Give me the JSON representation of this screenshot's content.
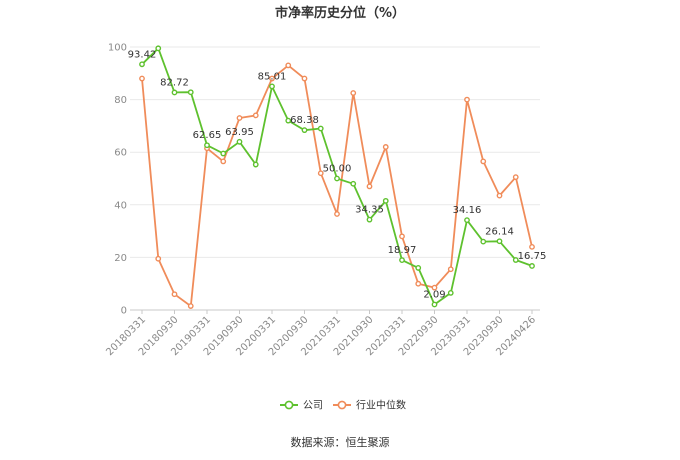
{
  "chart_data": {
    "type": "line",
    "title": "市净率历史分位（%）",
    "source": "数据来源：恒生聚源",
    "ylim": [
      0,
      100
    ],
    "yticks": [
      0,
      20,
      40,
      60,
      80,
      100
    ],
    "grid": true,
    "legend_position": "bottom",
    "x_tick_labels": [
      "20180331",
      "20180930",
      "20190331",
      "20190930",
      "20200331",
      "20200930",
      "20210331",
      "20210930",
      "20220331",
      "20220930",
      "20230331",
      "20230930",
      "20240426"
    ],
    "series": [
      {
        "name": "公司",
        "color": "#5ec12e",
        "values": [
          93.42,
          99.5,
          82.72,
          82.8,
          62.65,
          59.5,
          63.95,
          55.3,
          85.01,
          72.0,
          68.38,
          69.0,
          50.0,
          48.0,
          34.35,
          41.5,
          18.97,
          16.0,
          2.09,
          6.5,
          34.16,
          26.0,
          26.14,
          19.0,
          16.75
        ],
        "labels": {
          "0": "93.42",
          "2": "82.72",
          "4": "62.65",
          "6": "63.95",
          "8": "85.01",
          "10": "68.38",
          "12": "50.00",
          "14": "34.35",
          "16": "18.97",
          "18": "2.09",
          "20": "34.16",
          "22": "26.14",
          "24": "16.75"
        }
      },
      {
        "name": "行业中位数",
        "color": "#f08c5a",
        "values": [
          88.0,
          19.5,
          6.0,
          1.5,
          61.5,
          56.5,
          73.0,
          74.0,
          88.0,
          93.0,
          88.0,
          52.0,
          36.5,
          82.5,
          47.0,
          62.0,
          28.0,
          10.0,
          8.5,
          15.5,
          80.0,
          56.5,
          43.5,
          50.5,
          24.0
        ]
      }
    ]
  }
}
